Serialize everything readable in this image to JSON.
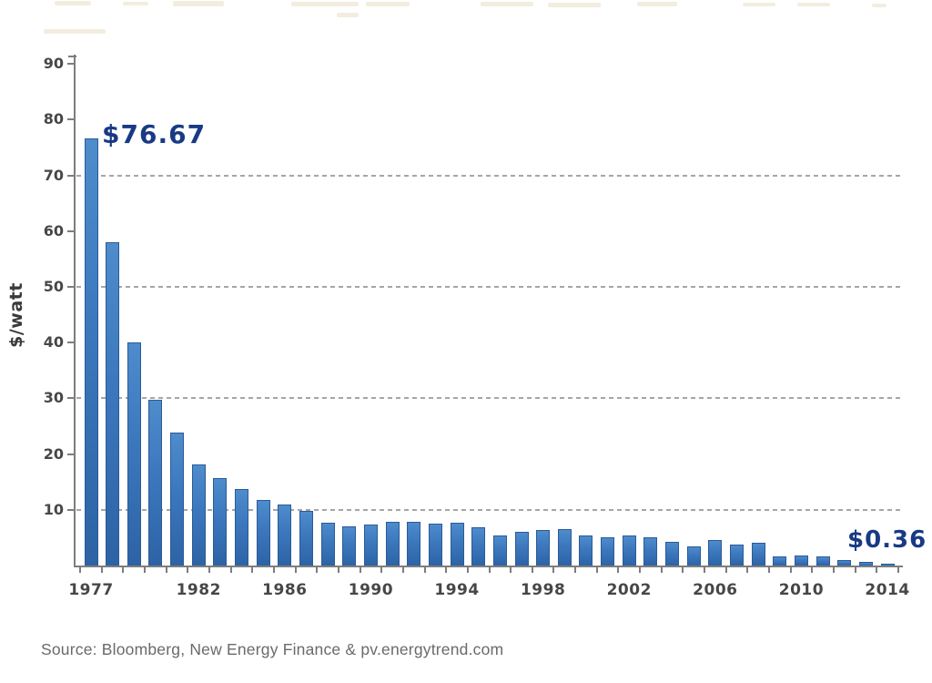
{
  "chart_data": {
    "type": "bar",
    "title": "",
    "title_note_visible_pixels": "title is cropped at top edge of image, illegible",
    "ylabel": "$/watt",
    "xlabel": "",
    "ylim": [
      0,
      90
    ],
    "ytick_values": [
      10,
      20,
      30,
      40,
      50,
      60,
      70,
      80,
      90
    ],
    "gridline_values": [
      10,
      30,
      50,
      70
    ],
    "grid": "horizontal dashed gridlines at 10, 30, 50, 70",
    "legend_position": "none",
    "categories": [
      1977,
      1978,
      1979,
      1980,
      1981,
      1982,
      1983,
      1984,
      1985,
      1986,
      1987,
      1988,
      1989,
      1990,
      1991,
      1992,
      1993,
      1994,
      1995,
      1996,
      1997,
      1998,
      1999,
      2000,
      2001,
      2002,
      2003,
      2004,
      2005,
      2006,
      2007,
      2008,
      2009,
      2010,
      2011,
      2012,
      2013,
      2014
    ],
    "values": [
      76.67,
      58.0,
      40.0,
      29.7,
      23.8,
      18.2,
      15.7,
      13.7,
      11.7,
      11.0,
      9.8,
      7.7,
      7.0,
      7.3,
      7.8,
      7.9,
      7.5,
      7.6,
      6.9,
      5.4,
      6.1,
      6.4,
      6.6,
      5.4,
      5.1,
      5.4,
      5.1,
      4.3,
      3.5,
      4.5,
      3.8,
      4.1,
      1.7,
      1.8,
      1.6,
      1.0,
      0.7,
      0.36
    ],
    "x_axis_labels": [
      "1977",
      "1982",
      "1986",
      "1990",
      "1994",
      "1998",
      "2002",
      "2006",
      "2010",
      "2014"
    ],
    "annotations": [
      {
        "text": "$76.67",
        "target_year": 1977
      },
      {
        "text": "$0.36",
        "target_year": 2014
      }
    ],
    "bar_color": "#3c77bd",
    "annotation_color": "#183a85"
  },
  "source_line": "Source: Bloomberg, New Energy Finance & pv.energytrend.com"
}
